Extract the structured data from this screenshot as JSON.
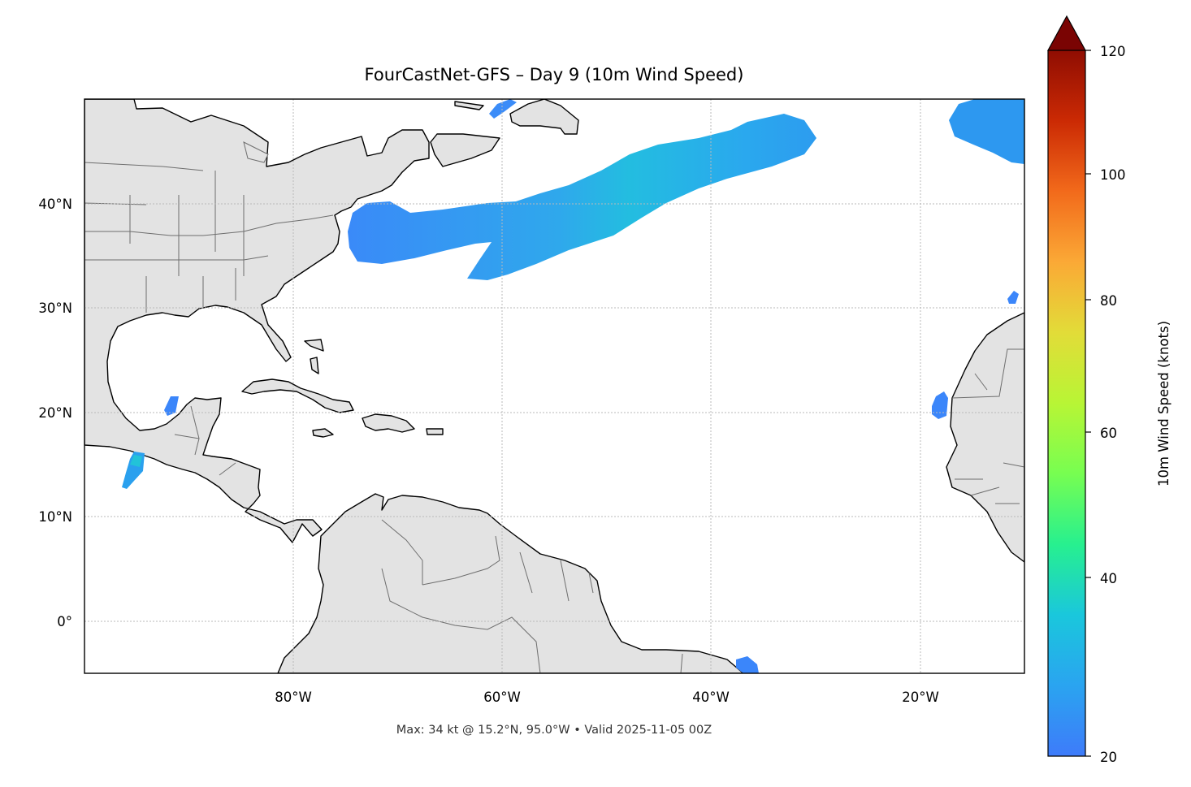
{
  "title": "FourCastNet-GFS – Day 9 (10m Wind Speed)",
  "footer": "Max: 34 kt @ 15.2°N, 95.0°W • Valid 2025-11-05 00Z",
  "colorbar": {
    "label": "10m Wind Speed (knots)",
    "ticks": [
      "20",
      "40",
      "60",
      "80",
      "100",
      "120"
    ],
    "range": [
      20,
      120
    ],
    "colormap": "turbo",
    "extend": "max",
    "colors": [
      "#3e7bfa",
      "#1ac7dc",
      "#27f08f",
      "#a4fc3c",
      "#e2dc38",
      "#fba936",
      "#f26a1b",
      "#cb2a04",
      "#8f0d02",
      "#7a0403"
    ]
  },
  "map": {
    "lon_range": [
      -100,
      -10
    ],
    "lat_range": [
      -5,
      50
    ],
    "lon_tick_labels": [
      "80°W",
      "60°W",
      "40°W",
      "20°W"
    ],
    "lat_tick_labels": [
      "40°N",
      "30°N",
      "20°N",
      "10°N",
      "0°"
    ],
    "land_color": "#e3e3e3",
    "gridlines": true
  },
  "max_point": {
    "value_kt": 34,
    "lat": 15.2,
    "lon": -95.0
  },
  "wind_regions": [
    {
      "name": "subtropical-atlantic-band",
      "speed_kt": 24
    },
    {
      "name": "northeast-atlantic-patch",
      "speed_kt": 22
    },
    {
      "name": "tehuantepec-gap-wind",
      "speed_kt": 34
    },
    {
      "name": "canary-islands-patch",
      "speed_kt": 21
    }
  ]
}
